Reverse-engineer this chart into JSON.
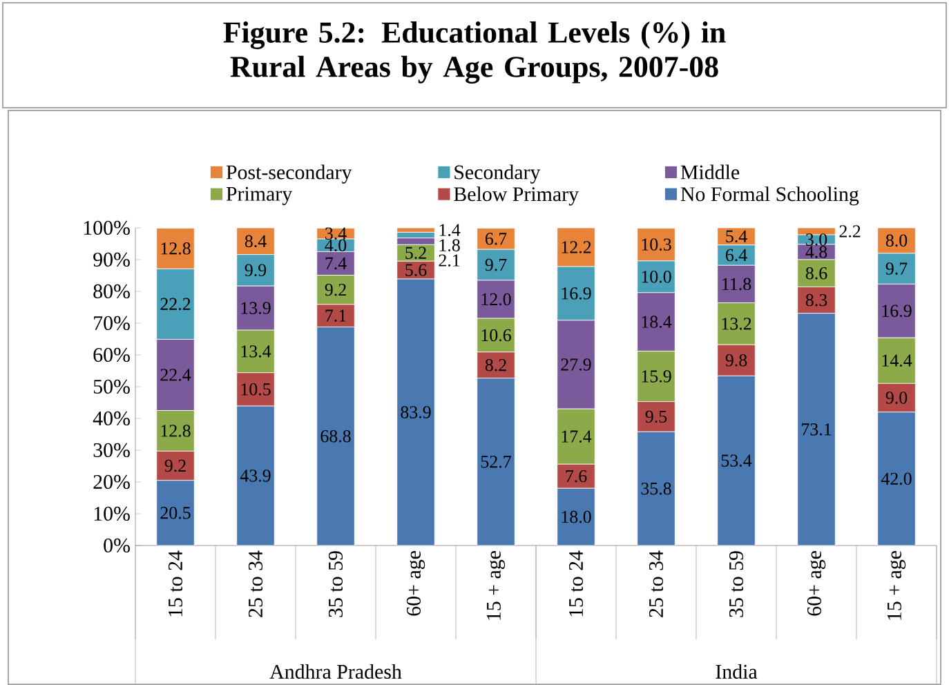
{
  "chart_data": {
    "type": "bar",
    "stacked": true,
    "legend": "top",
    "title": "Figure 5.2: Educational Levels (%) in Rural Areas by Age Groups, 2007-08",
    "categories": [
      "15 to 24",
      "25 to 34",
      "35 to 59",
      "60+ age",
      "15 + age",
      "15 to 24",
      "25 to 34",
      "35 to 59",
      "60+ age",
      "15 + age"
    ],
    "annotations": [
      "Andhra Pradesh",
      "India"
    ],
    "ylim": [
      0,
      100
    ],
    "yticks": [
      {
        "value": 0,
        "label": "0%"
      },
      {
        "value": 10,
        "label": "10%"
      },
      {
        "value": 20,
        "label": "20%"
      },
      {
        "value": 30,
        "label": "30%"
      },
      {
        "value": 40,
        "label": "40%"
      },
      {
        "value": 50,
        "label": "50%"
      },
      {
        "value": 60,
        "label": "60%"
      },
      {
        "value": 70,
        "label": "70%"
      },
      {
        "value": 80,
        "label": "80%"
      },
      {
        "value": 90,
        "label": "90%"
      },
      {
        "value": 100,
        "label": "100%"
      }
    ],
    "series": [
      {
        "name": "No Formal Schooling",
        "color": "#4a78b0",
        "values": [
          20.5,
          43.9,
          68.8,
          83.9,
          52.7,
          18.0,
          35.8,
          53.4,
          73.1,
          42.0
        ],
        "value_labels": [
          "20.5",
          "43.9",
          "68.8",
          "83.9",
          "52.7",
          "18.0",
          "35.8",
          "53.4",
          "73.1",
          "42.0"
        ]
      },
      {
        "name": "Below Primary",
        "color": "#b44a48",
        "values": [
          9.2,
          10.5,
          7.1,
          5.6,
          8.2,
          7.6,
          9.5,
          9.8,
          8.3,
          9.0
        ],
        "value_labels": [
          "9.2",
          "10.5",
          "7.1",
          "5.6",
          "8.2",
          "7.6",
          "9.5",
          "9.8",
          "8.3",
          "9.0"
        ]
      },
      {
        "name": "Primary",
        "color": "#8caa4a",
        "values": [
          12.8,
          13.4,
          9.2,
          5.2,
          10.6,
          17.4,
          15.9,
          13.2,
          8.6,
          14.4
        ],
        "value_labels": [
          "12.8",
          "13.4",
          "9.2",
          "5.2",
          "10.6",
          "17.4",
          "15.9",
          "13.2",
          "8.6",
          "14.4"
        ]
      },
      {
        "name": "Middle",
        "color": "#7a5a9a",
        "values": [
          22.4,
          13.9,
          7.4,
          2.1,
          12.0,
          27.9,
          18.4,
          11.8,
          4.8,
          16.9
        ],
        "value_labels": [
          "22.4",
          "13.9",
          "7.4",
          "2.1",
          "12.0",
          "27.9",
          "18.4",
          "11.8",
          "4.8",
          "16.9"
        ]
      },
      {
        "name": "Secondary",
        "color": "#4aa0b8",
        "values": [
          22.2,
          9.9,
          4.0,
          1.8,
          9.7,
          16.9,
          10.0,
          6.4,
          3.0,
          9.7
        ],
        "value_labels": [
          "22.2",
          "9.9",
          "4.0",
          "1.8",
          "9.7",
          "16.9",
          "10.0",
          "6.4",
          "3.0",
          "9.7"
        ]
      },
      {
        "name": "Post-secondary",
        "color": "#e8843a",
        "values": [
          12.8,
          8.4,
          3.4,
          1.4,
          6.7,
          12.2,
          10.3,
          5.4,
          2.2,
          8.0
        ],
        "value_labels": [
          "12.8",
          "8.4",
          "3.4",
          "1.4",
          "6.7",
          "12.2",
          "10.3",
          "5.4",
          "2.2",
          "8.0"
        ]
      }
    ]
  }
}
